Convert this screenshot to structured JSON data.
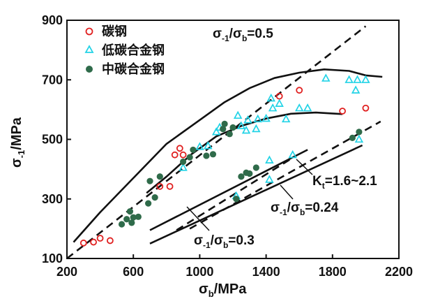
{
  "chart_data": {
    "type": "scatter",
    "xlabel_main": "σ",
    "xlabel_sub": "b",
    "xlabel_unit": "/MPa",
    "ylabel_main": "σ",
    "ylabel_sub": "-1",
    "ylabel_unit": "/MPa",
    "xlim": [
      200,
      2200
    ],
    "ylim": [
      100,
      900
    ],
    "xticks": [
      200,
      600,
      1000,
      1400,
      1800,
      2200
    ],
    "yticks": [
      100,
      300,
      500,
      700,
      900
    ],
    "series": [
      {
        "name": "碳钢",
        "marker": "open-circle",
        "color": "#e02020",
        "points": [
          [
            300,
            152
          ],
          [
            360,
            155
          ],
          [
            400,
            168
          ],
          [
            460,
            160
          ],
          [
            760,
            342
          ],
          [
            820,
            342
          ],
          [
            850,
            448
          ],
          [
            880,
            470
          ],
          [
            900,
            448
          ],
          [
            1480,
            645
          ],
          [
            1600,
            665
          ],
          [
            1860,
            595
          ],
          [
            2000,
            605
          ]
        ]
      },
      {
        "name": "低碳合金钢",
        "marker": "open-triangle",
        "color": "#22d3e6",
        "points": [
          [
            900,
            405
          ],
          [
            1000,
            475
          ],
          [
            1050,
            478
          ],
          [
            1100,
            525
          ],
          [
            1120,
            540
          ],
          [
            1220,
            310
          ],
          [
            1230,
            580
          ],
          [
            1250,
            545
          ],
          [
            1280,
            530
          ],
          [
            1290,
            565
          ],
          [
            1340,
            535
          ],
          [
            1350,
            568
          ],
          [
            1400,
            570
          ],
          [
            1420,
            430
          ],
          [
            1420,
            365
          ],
          [
            1430,
            638
          ],
          [
            1440,
            605
          ],
          [
            1480,
            620
          ],
          [
            1520,
            568
          ],
          [
            1560,
            448
          ],
          [
            1600,
            605
          ],
          [
            1650,
            605
          ],
          [
            1760,
            705
          ],
          [
            1900,
            700
          ],
          [
            1940,
            665
          ],
          [
            1950,
            700
          ],
          [
            1960,
            500
          ],
          [
            2000,
            700
          ]
        ]
      },
      {
        "name": "中碳合金钢",
        "marker": "filled-circle",
        "color": "#2f6b4a",
        "points": [
          [
            530,
            215
          ],
          [
            560,
            232
          ],
          [
            580,
            258
          ],
          [
            590,
            220
          ],
          [
            600,
            238
          ],
          [
            630,
            240
          ],
          [
            690,
            285
          ],
          [
            700,
            360
          ],
          [
            730,
            305
          ],
          [
            760,
            375
          ],
          [
            900,
            425
          ],
          [
            940,
            440
          ],
          [
            960,
            465
          ],
          [
            1040,
            445
          ],
          [
            1080,
            450
          ],
          [
            1140,
            535
          ],
          [
            1150,
            552
          ],
          [
            1180,
            518
          ],
          [
            1200,
            540
          ],
          [
            1220,
            300
          ],
          [
            1250,
            375
          ],
          [
            1280,
            388
          ],
          [
            1300,
            385
          ],
          [
            1340,
            405
          ],
          [
            1920,
            505
          ],
          [
            1960,
            525
          ]
        ]
      }
    ],
    "curves": [
      {
        "name": "upper-envelope",
        "style": "solid",
        "points": [
          [
            240,
            155
          ],
          [
            400,
            255
          ],
          [
            600,
            370
          ],
          [
            800,
            485
          ],
          [
            1000,
            565
          ],
          [
            1150,
            625
          ],
          [
            1300,
            672
          ],
          [
            1450,
            706
          ],
          [
            1600,
            724
          ],
          [
            1750,
            735
          ],
          [
            1900,
            730
          ],
          [
            2000,
            715
          ],
          [
            2100,
            710
          ]
        ]
      },
      {
        "name": "middle-curve",
        "style": "solid",
        "points": [
          [
            680,
            320
          ],
          [
            800,
            375
          ],
          [
            950,
            450
          ],
          [
            1100,
            510
          ],
          [
            1250,
            545
          ],
          [
            1400,
            570
          ],
          [
            1550,
            586
          ],
          [
            1700,
            590
          ],
          [
            1860,
            585
          ]
        ]
      },
      {
        "name": "Kt-upper-line",
        "style": "solid",
        "points": [
          [
            700,
            195
          ],
          [
            1650,
            465
          ]
        ]
      },
      {
        "name": "Kt-middle-line",
        "style": "solid",
        "points": [
          [
            700,
            150
          ],
          [
            1980,
            480
          ]
        ]
      },
      {
        "name": "ratio-0.5-line",
        "style": "dashed",
        "points": [
          [
            200,
            100
          ],
          [
            2000,
            880
          ]
        ]
      },
      {
        "name": "ratio-0.3-line",
        "style": "dashed",
        "points": [
          [
            860,
            195
          ],
          [
            1580,
            445
          ]
        ]
      },
      {
        "name": "ratio-0.24-line",
        "style": "dashed",
        "points": [
          [
            940,
            200
          ],
          [
            2090,
            560
          ]
        ]
      }
    ],
    "annotations": {
      "ratio_05": {
        "main": "σ",
        "s1": "-1",
        "mid": "/σ",
        "s2": "b",
        "tail": "=0.5"
      },
      "ratio_03": {
        "main": "σ",
        "s1": "-1",
        "mid": "/σ",
        "s2": "b",
        "tail": "=0.3"
      },
      "ratio_024": {
        "main": "σ",
        "s1": "-1",
        "mid": "/σ",
        "s2": "b",
        "tail": "=0.24"
      },
      "kt": {
        "main": "K",
        "s1": "t",
        "tail": "=1.6~2.1"
      }
    }
  }
}
